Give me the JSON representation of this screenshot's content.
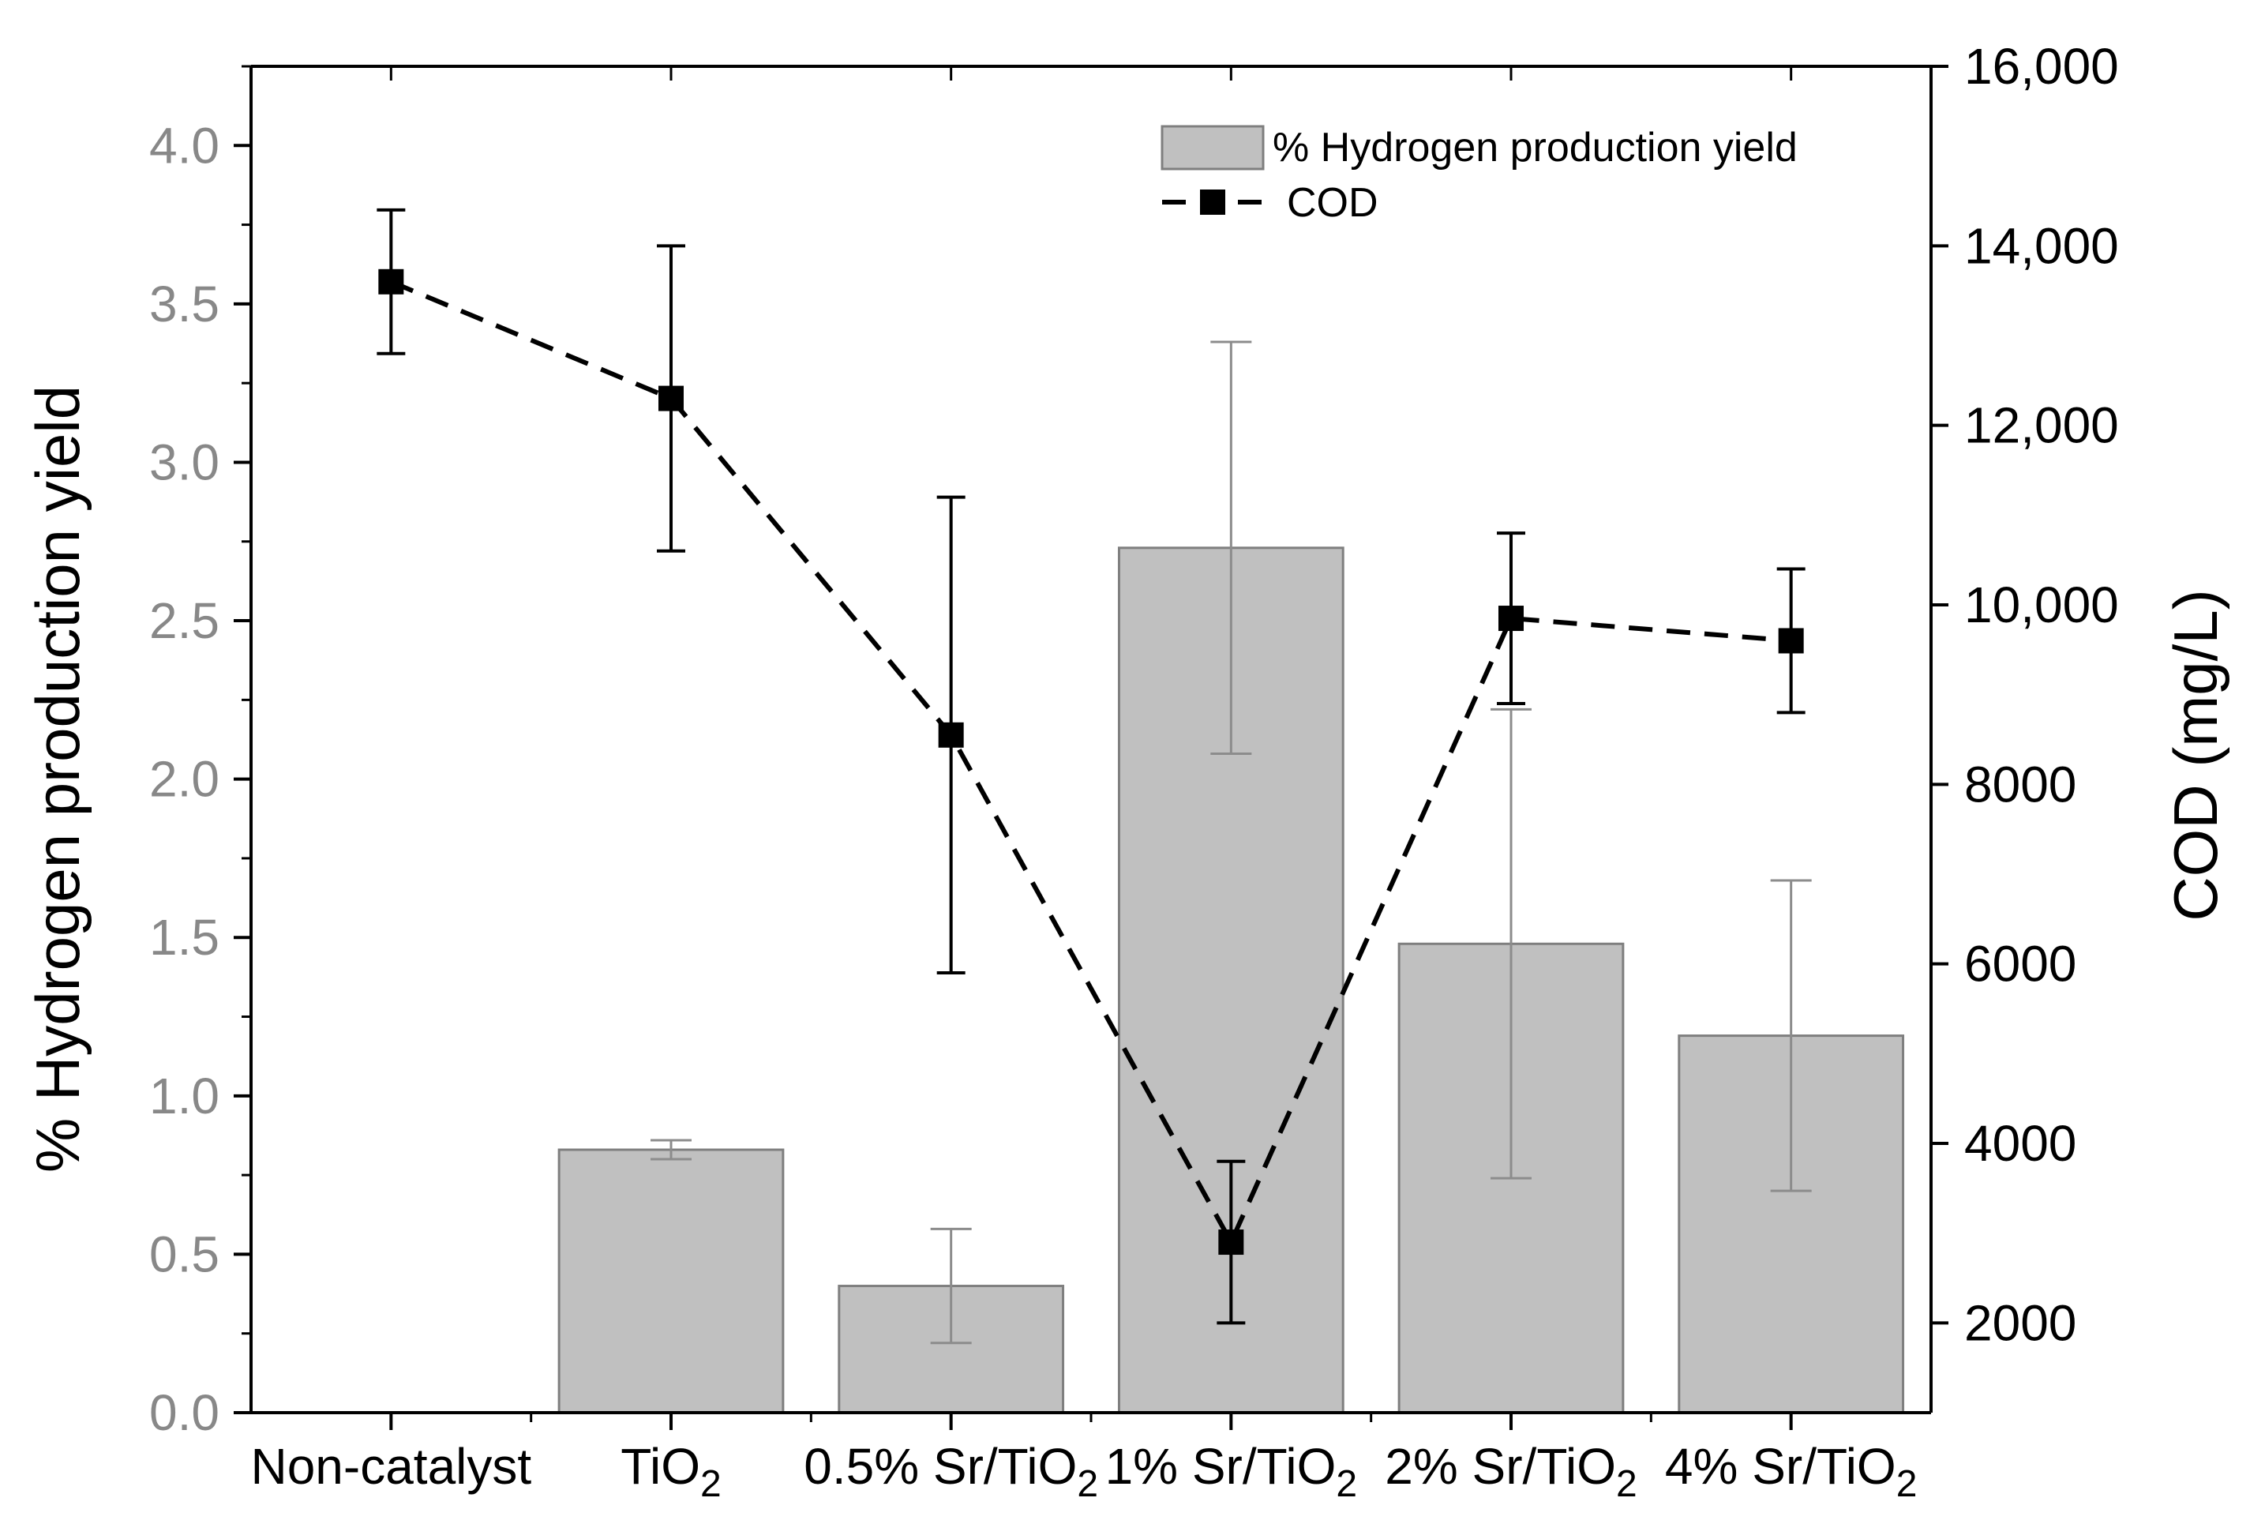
{
  "chart_data": {
    "type": "bar+line",
    "categories": [
      {
        "base": "Non-catalyst",
        "sub": ""
      },
      {
        "base": "TiO",
        "sub": "2"
      },
      {
        "base": "0.5% Sr/TiO",
        "sub": "2"
      },
      {
        "base": "1% Sr/TiO",
        "sub": "2"
      },
      {
        "base": "2% Sr/TiO",
        "sub": "2"
      },
      {
        "base": "4% Sr/TiO",
        "sub": "2"
      }
    ],
    "series": [
      {
        "name": "% Hydrogen production yield",
        "type": "bar",
        "axis": "left",
        "color": "#c0c0c0",
        "values": [
          null,
          0.83,
          0.4,
          2.73,
          1.48,
          1.19
        ],
        "errors": [
          null,
          0.03,
          0.18,
          0.65,
          0.74,
          0.49
        ]
      },
      {
        "name": "COD",
        "type": "line",
        "axis": "right",
        "color": "#000000",
        "line_style": "dashed",
        "marker": "square",
        "values": [
          13600,
          12300,
          8550,
          2900,
          9850,
          9600
        ],
        "errors": [
          800,
          1700,
          2650,
          900,
          950,
          800
        ]
      }
    ],
    "y_left": {
      "label": "% Hydrogen production yield",
      "ylim": [
        0,
        4.25
      ],
      "ticks": [
        "0.0",
        "0.5",
        "1.0",
        "1.5",
        "2.0",
        "2.5",
        "3.0",
        "3.5",
        "4.0"
      ],
      "tick_values": [
        0,
        0.5,
        1.0,
        1.5,
        2.0,
        2.5,
        3.0,
        3.5,
        4.0
      ],
      "tick_color": "#888888"
    },
    "y_right": {
      "label": "COD (mg/L)",
      "ylim": [
        1000,
        16000
      ],
      "ticks": [
        "2000",
        "4000",
        "6000",
        "8000",
        "10,000",
        "12,000",
        "14,000",
        "16,000"
      ],
      "tick_values": [
        2000,
        4000,
        6000,
        8000,
        10000,
        12000,
        14000,
        16000
      ]
    },
    "legend": {
      "position": "top-right",
      "entries": [
        "% Hydrogen production yield",
        "COD"
      ]
    }
  }
}
